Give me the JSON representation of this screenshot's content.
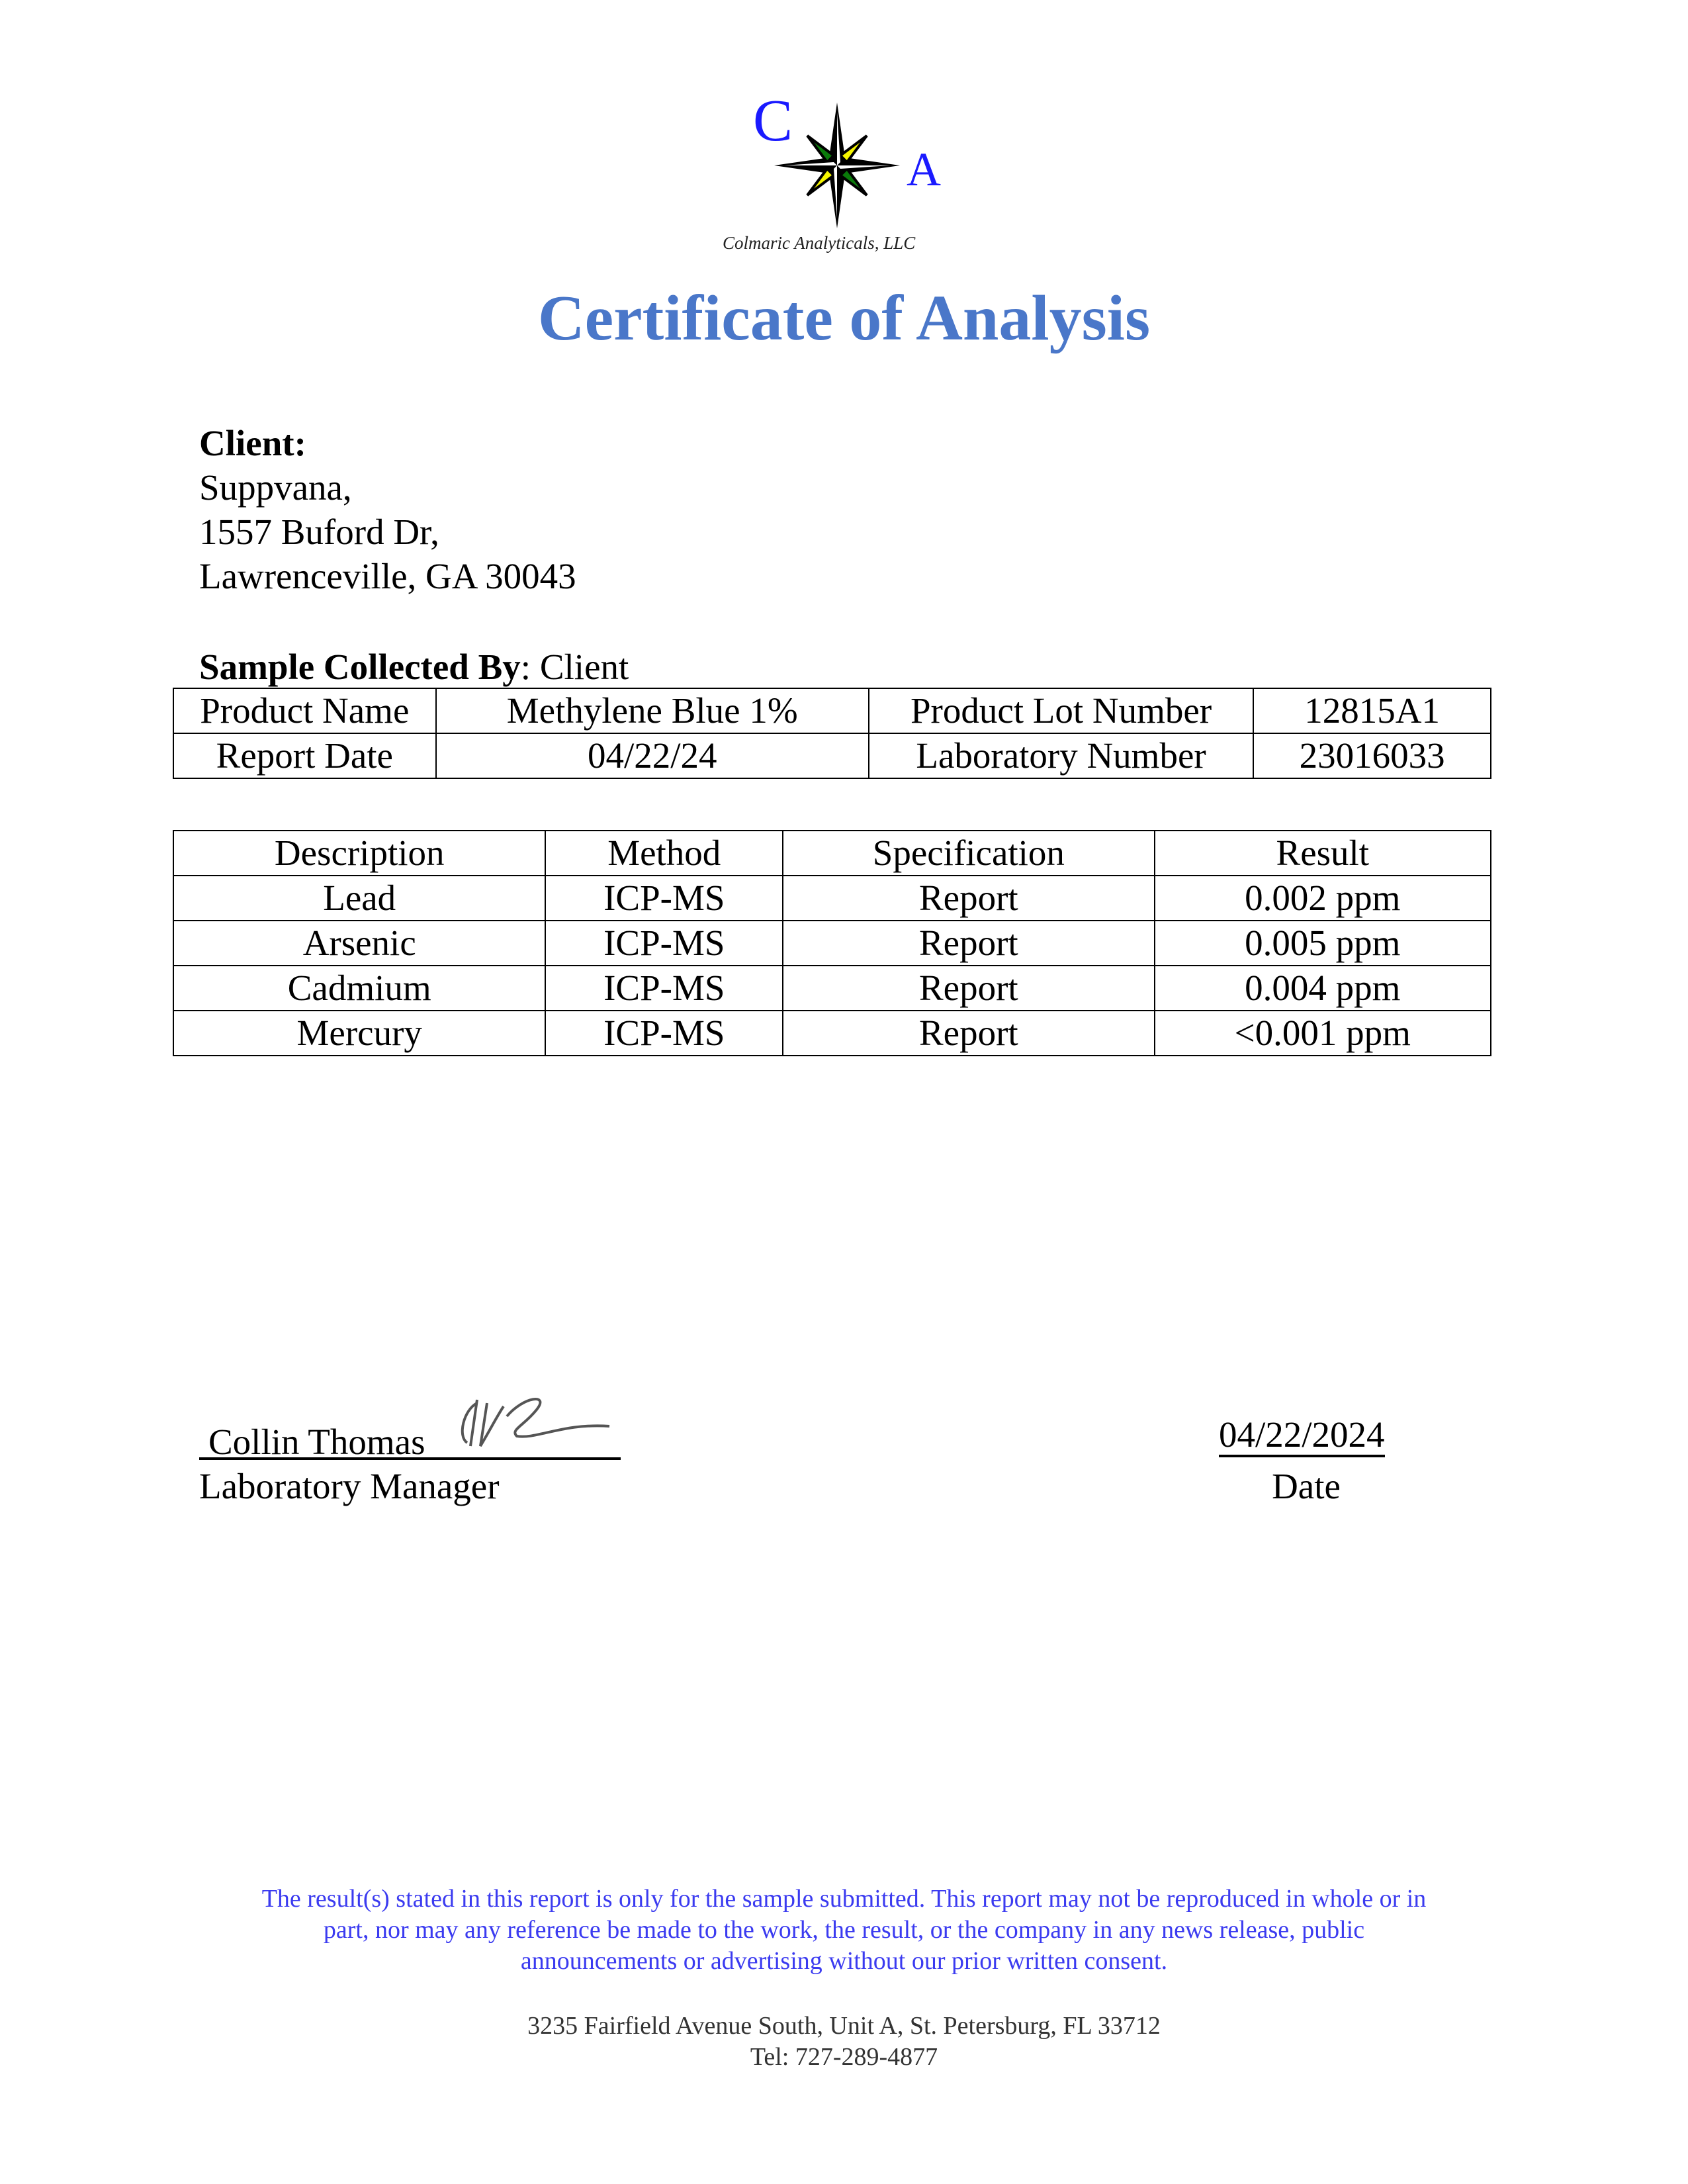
{
  "logo": {
    "letter_c": "C",
    "letter_a": "A",
    "company_name": "Colmaric Analyticals, LLC",
    "colors": {
      "letters": "#1a1aff",
      "star": "#000000",
      "accent_green": "#0a7a0a",
      "accent_yellow": "#f5f500"
    }
  },
  "title": "Certificate of Analysis",
  "client": {
    "label": "Client:",
    "name": "Suppvana,",
    "address1": "1557 Buford Dr,",
    "address2": "Lawrenceville, GA 30043"
  },
  "sample": {
    "label": "Sample Collected By",
    "value": ": Client"
  },
  "info_table": [
    [
      "Product Name",
      "Methylene Blue 1%",
      "Product Lot Number",
      "12815A1"
    ],
    [
      "Report Date",
      "04/22/24",
      "Laboratory Number",
      "23016033"
    ]
  ],
  "results_table": {
    "headers": [
      "Description",
      "Method",
      "Specification",
      "Result"
    ],
    "rows": [
      [
        "Lead",
        "ICP-MS",
        "Report",
        "0.002 ppm"
      ],
      [
        "Arsenic",
        "ICP-MS",
        "Report",
        "0.005 ppm"
      ],
      [
        "Cadmium",
        "ICP-MS",
        "Report",
        "0.004 ppm"
      ],
      [
        "Mercury",
        "ICP-MS",
        "Report",
        "<0.001 ppm"
      ]
    ]
  },
  "signature": {
    "name": "Collin Thomas",
    "role": "Laboratory Manager",
    "date": "04/22/2024",
    "date_label": "Date"
  },
  "disclaimer": [
    "The result(s) stated in this report is only for the sample submitted. This report may not be reproduced in whole or in",
    "part, nor may any reference be made to the work, the result, or the company in any news release, public",
    "announcements or advertising without our prior written consent."
  ],
  "address": {
    "line1": "3235 Fairfield Avenue South, Unit A, St. Petersburg, FL 33712",
    "line2": "Tel: 727-289-4877"
  }
}
